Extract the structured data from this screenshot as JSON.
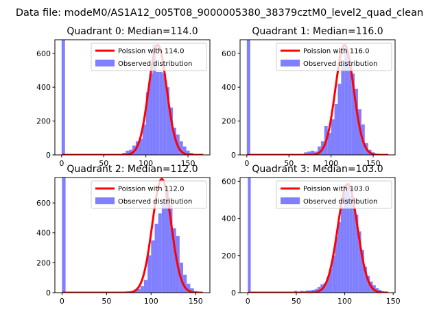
{
  "suptitle": "Data file: modeM0/AS1A12_005T08_9000005380_38379cztM0_level2_quad_clean",
  "colors": {
    "poisson": "#ff0000",
    "hist": "#7f7fff"
  },
  "chart_data": [
    {
      "type": "bar+line",
      "title": "Quadrant 0: Median=114.0",
      "xlim": [
        -8,
        176
      ],
      "ylim": [
        0,
        680
      ],
      "xticks": [
        0,
        50,
        100,
        150
      ],
      "yticks": [
        0,
        200,
        400,
        600
      ],
      "legend": {
        "placement": "top-right",
        "entries": [
          "Poission with 114.0",
          "Observed distribution"
        ]
      },
      "poisson_mean": 114.0,
      "poisson_peak": 650,
      "poisson_xmax": 168,
      "histogram": {
        "bin_width": 4,
        "bins": [
          [
            0,
            680
          ],
          [
            68,
            5
          ],
          [
            72,
            12
          ],
          [
            76,
            25
          ],
          [
            80,
            30
          ],
          [
            84,
            55
          ],
          [
            88,
            80
          ],
          [
            92,
            95
          ],
          [
            96,
            180
          ],
          [
            100,
            370
          ],
          [
            104,
            480
          ],
          [
            108,
            650
          ],
          [
            112,
            490
          ],
          [
            116,
            490
          ],
          [
            120,
            480
          ],
          [
            124,
            400
          ],
          [
            128,
            280
          ],
          [
            132,
            160
          ],
          [
            136,
            120
          ],
          [
            140,
            80
          ],
          [
            144,
            50
          ],
          [
            148,
            25
          ],
          [
            152,
            12
          ],
          [
            156,
            5
          ]
        ]
      }
    },
    {
      "type": "bar+line",
      "title": "Quadrant 1: Median=116.0",
      "xlim": [
        -8,
        176
      ],
      "ylim": [
        0,
        680
      ],
      "xticks": [
        0,
        50,
        100,
        150
      ],
      "yticks": [
        0,
        200,
        400,
        600
      ],
      "legend": {
        "placement": "top-right",
        "entries": [
          "Poission with 116.0",
          "Observed distribution"
        ]
      },
      "poisson_mean": 116.0,
      "poisson_peak": 650,
      "poisson_xmax": 168,
      "histogram": {
        "bin_width": 4,
        "bins": [
          [
            0,
            680
          ],
          [
            64,
            5
          ],
          [
            68,
            15
          ],
          [
            72,
            20
          ],
          [
            76,
            25
          ],
          [
            80,
            20
          ],
          [
            84,
            50
          ],
          [
            88,
            80
          ],
          [
            92,
            170
          ],
          [
            96,
            130
          ],
          [
            100,
            210
          ],
          [
            104,
            300
          ],
          [
            108,
            420
          ],
          [
            112,
            530
          ],
          [
            116,
            630
          ],
          [
            120,
            540
          ],
          [
            124,
            480
          ],
          [
            128,
            390
          ],
          [
            132,
            270
          ],
          [
            136,
            180
          ],
          [
            140,
            70
          ],
          [
            144,
            30
          ],
          [
            148,
            15
          ],
          [
            152,
            5
          ]
        ]
      }
    },
    {
      "type": "bar+line",
      "title": "Quadrant 2: Median=112.0",
      "xlim": [
        -8,
        166
      ],
      "ylim": [
        0,
        770
      ],
      "xticks": [
        0,
        50,
        100,
        150
      ],
      "yticks": [
        0,
        200,
        400,
        600
      ],
      "legend": {
        "placement": "top-right",
        "entries": [
          "Poission with 112.0",
          "Observed distribution"
        ]
      },
      "poisson_mean": 112.0,
      "poisson_peak": 760,
      "poisson_xmax": 158,
      "histogram": {
        "bin_width": 4,
        "bins": [
          [
            0,
            770
          ],
          [
            68,
            5
          ],
          [
            72,
            8
          ],
          [
            76,
            10
          ],
          [
            80,
            15
          ],
          [
            84,
            25
          ],
          [
            88,
            45
          ],
          [
            92,
            85
          ],
          [
            96,
            250
          ],
          [
            100,
            350
          ],
          [
            104,
            460
          ],
          [
            108,
            530
          ],
          [
            112,
            600
          ],
          [
            116,
            680
          ],
          [
            120,
            590
          ],
          [
            124,
            430
          ],
          [
            128,
            380
          ],
          [
            132,
            200
          ],
          [
            136,
            120
          ],
          [
            140,
            60
          ],
          [
            144,
            30
          ],
          [
            148,
            10
          ],
          [
            152,
            5
          ]
        ]
      }
    },
    {
      "type": "bar+line",
      "title": "Quadrant 3: Median=103.0",
      "xlim": [
        -8,
        152
      ],
      "ylim": [
        0,
        620
      ],
      "xticks": [
        0,
        50,
        100,
        150
      ],
      "yticks": [
        0,
        200,
        400,
        600
      ],
      "legend": {
        "placement": "top-right",
        "entries": [
          "Poission with 103.0",
          "Observed distribution"
        ]
      },
      "poisson_mean": 103.0,
      "poisson_peak": 585,
      "poisson_xmax": 145,
      "histogram": {
        "bin_width": 3,
        "bins": [
          [
            0,
            620
          ],
          [
            45,
            5
          ],
          [
            48,
            10
          ],
          [
            51,
            5
          ],
          [
            54,
            10
          ],
          [
            57,
            8
          ],
          [
            60,
            12
          ],
          [
            63,
            12
          ],
          [
            66,
            15
          ],
          [
            69,
            20
          ],
          [
            72,
            30
          ],
          [
            75,
            45
          ],
          [
            78,
            50
          ],
          [
            81,
            80
          ],
          [
            84,
            130
          ],
          [
            87,
            200
          ],
          [
            90,
            300
          ],
          [
            93,
            380
          ],
          [
            96,
            460
          ],
          [
            99,
            540
          ],
          [
            102,
            570
          ],
          [
            105,
            520
          ],
          [
            108,
            480
          ],
          [
            111,
            420
          ],
          [
            114,
            330
          ],
          [
            117,
            230
          ],
          [
            120,
            140
          ],
          [
            123,
            90
          ],
          [
            126,
            60
          ],
          [
            129,
            40
          ],
          [
            132,
            25
          ],
          [
            135,
            15
          ],
          [
            138,
            8
          ],
          [
            141,
            4
          ]
        ]
      }
    }
  ]
}
